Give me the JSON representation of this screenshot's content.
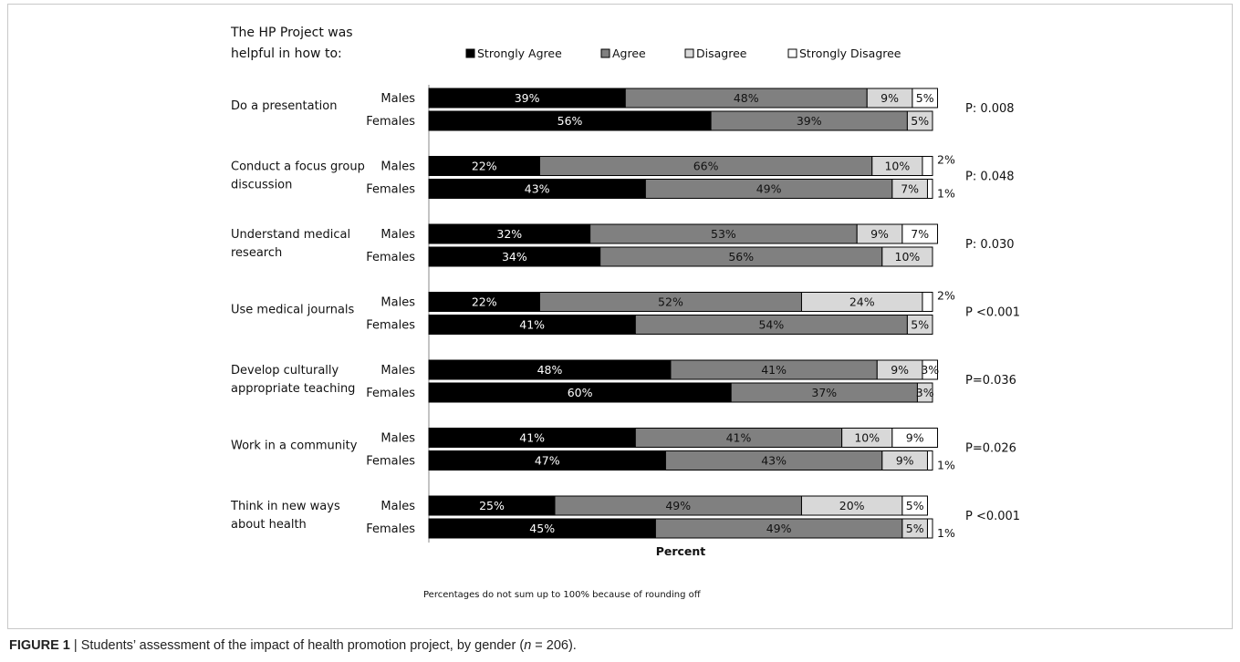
{
  "figure": {
    "caption_label": "FIGURE 1",
    "caption_text": " | Students’ assessment of the impact of health promotion project, by gender (",
    "caption_n": "n",
    "caption_end": " = 206)."
  },
  "colors": {
    "Strongly Agree": "#000000",
    "Agree": "#808080",
    "Disagree": "#d8d8d8",
    "Strongly Disagree": "#ffffff"
  },
  "chart_data": {
    "type": "bar",
    "orientation": "horizontal",
    "stacked": true,
    "title_lines": [
      "The HP Project was",
      "helpful in how to:"
    ],
    "xlabel": "Percent",
    "footnote": "Percentages do not sum up to 100% because of rounding off",
    "legend": [
      "Strongly Agree",
      "Agree",
      "Disagree",
      "Strongly Disagree"
    ],
    "legend_position": "top",
    "xlim": [
      0,
      100
    ],
    "groups": [
      {
        "label_lines": [
          "Do a presentation"
        ],
        "p_value": "P: 0.008",
        "rows": [
          {
            "gender": "Males",
            "values": [
              39,
              48,
              9,
              5
            ],
            "labels": [
              "39%",
              "48%",
              "9%",
              "5%"
            ],
            "outside_label": ""
          },
          {
            "gender": "Females",
            "values": [
              56,
              39,
              5,
              0
            ],
            "labels": [
              "56%",
              "39%",
              "5%",
              ""
            ],
            "outside_label": ""
          }
        ]
      },
      {
        "label_lines": [
          "Conduct a focus group",
          "discussion"
        ],
        "p_value": "P: 0.048",
        "rows": [
          {
            "gender": "Males",
            "values": [
              22,
              66,
              10,
              2
            ],
            "labels": [
              "22%",
              "66%",
              "10%",
              ""
            ],
            "outside_label": "2%"
          },
          {
            "gender": "Females",
            "values": [
              43,
              49,
              7,
              1
            ],
            "labels": [
              "43%",
              "49%",
              "7%",
              ""
            ],
            "outside_label": "1%"
          }
        ]
      },
      {
        "label_lines": [
          "Understand medical",
          "research"
        ],
        "p_value": "P: 0.030",
        "rows": [
          {
            "gender": "Males",
            "values": [
              32,
              53,
              9,
              7
            ],
            "labels": [
              "32%",
              "53%",
              "9%",
              "7%"
            ],
            "outside_label": ""
          },
          {
            "gender": "Females",
            "values": [
              34,
              56,
              10,
              0
            ],
            "labels": [
              "34%",
              "56%",
              "10%",
              ""
            ],
            "outside_label": ""
          }
        ]
      },
      {
        "label_lines": [
          "Use medical journals"
        ],
        "p_value": "P <0.001",
        "rows": [
          {
            "gender": "Males",
            "values": [
              22,
              52,
              24,
              2
            ],
            "labels": [
              "22%",
              "52%",
              "24%",
              ""
            ],
            "outside_label": "2%"
          },
          {
            "gender": "Females",
            "values": [
              41,
              54,
              5,
              0
            ],
            "labels": [
              "41%",
              "54%",
              "5%",
              ""
            ],
            "outside_label": ""
          }
        ]
      },
      {
        "label_lines": [
          "Develop culturally",
          "appropriate teaching"
        ],
        "p_value": "P=0.036",
        "rows": [
          {
            "gender": "Males",
            "values": [
              48,
              41,
              9,
              3
            ],
            "labels": [
              "48%",
              "41%",
              "9%",
              "3%"
            ],
            "outside_label": ""
          },
          {
            "gender": "Females",
            "values": [
              60,
              37,
              3,
              0
            ],
            "labels": [
              "60%",
              "37%",
              "3%",
              ""
            ],
            "outside_label": ""
          }
        ]
      },
      {
        "label_lines": [
          "Work in a community"
        ],
        "p_value": "P=0.026",
        "rows": [
          {
            "gender": "Males",
            "values": [
              41,
              41,
              10,
              9
            ],
            "labels": [
              "41%",
              "41%",
              "10%",
              "9%"
            ],
            "outside_label": ""
          },
          {
            "gender": "Females",
            "values": [
              47,
              43,
              9,
              1
            ],
            "labels": [
              "47%",
              "43%",
              "9%",
              ""
            ],
            "outside_label": "1%"
          }
        ]
      },
      {
        "label_lines": [
          "Think in new ways",
          "about health"
        ],
        "p_value": "P <0.001",
        "rows": [
          {
            "gender": "Males",
            "values": [
              25,
              49,
              20,
              5
            ],
            "labels": [
              "25%",
              "49%",
              "20%",
              "5%"
            ],
            "outside_label": ""
          },
          {
            "gender": "Females",
            "values": [
              45,
              49,
              5,
              1
            ],
            "labels": [
              "45%",
              "49%",
              "5%",
              ""
            ],
            "outside_label": "1%"
          }
        ]
      }
    ]
  }
}
